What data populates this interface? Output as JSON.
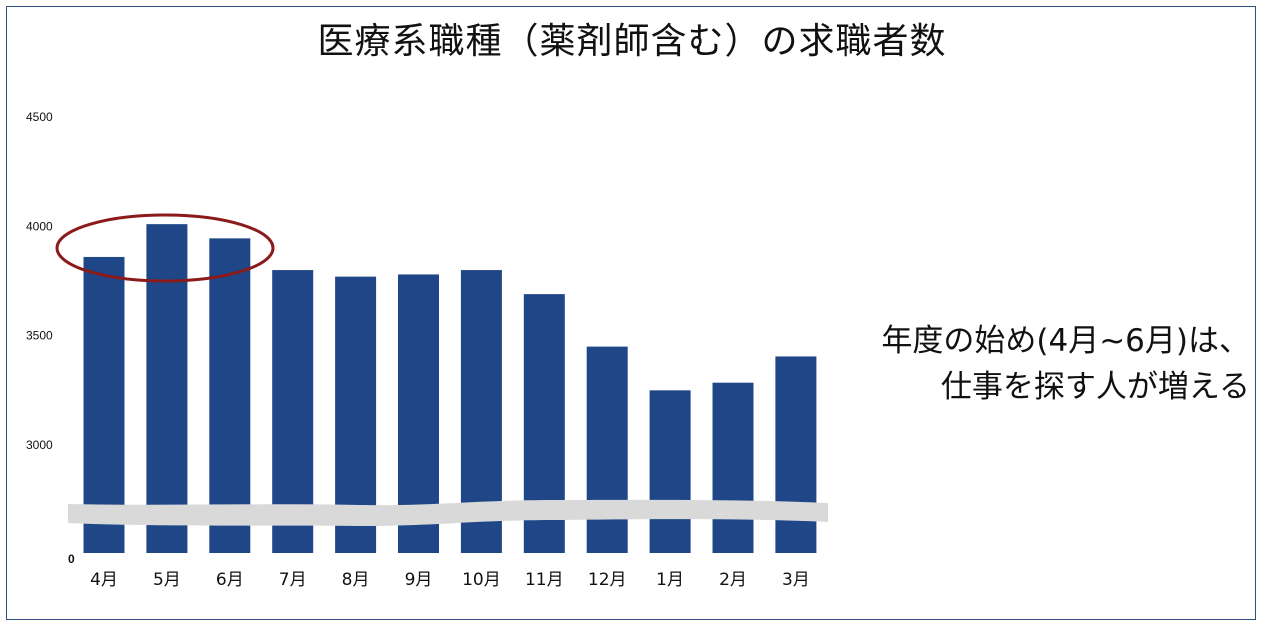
{
  "chart_data": {
    "type": "bar",
    "title": "医療系職種（薬剤師含む）の求職者数",
    "categories": [
      "4月",
      "5月",
      "6月",
      "7月",
      "8月",
      "9月",
      "10月",
      "11月",
      "12月",
      "1月",
      "2月",
      "3月"
    ],
    "values": [
      3860,
      4010,
      3945,
      3800,
      3770,
      3780,
      3800,
      3690,
      3450,
      3250,
      3285,
      3405
    ],
    "yticks": [
      4500,
      4000,
      3500,
      3000
    ],
    "ybase_label": "0",
    "y_axis_break": true,
    "ylim": [
      2500,
      4500
    ],
    "highlighted_categories": [
      "4月",
      "5月",
      "6月"
    ],
    "annotation": {
      "line1": "年度の始め(4月~6月)は、",
      "line2": "仕事を探す人が増える"
    },
    "colors": {
      "bar": "#1f4788",
      "highlight": "#8b1a1a",
      "break_band": "#d9d9d9"
    }
  }
}
